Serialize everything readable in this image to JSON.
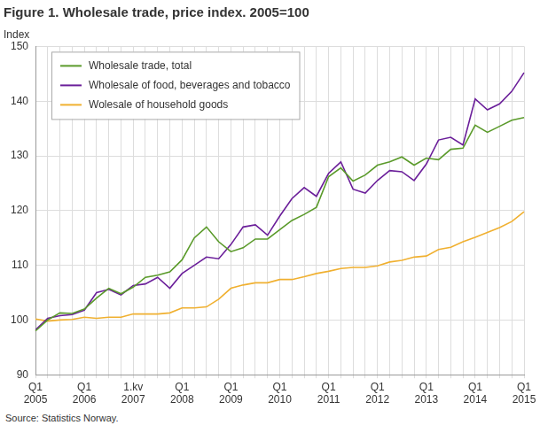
{
  "chart_data": {
    "type": "line",
    "title": "Figure 1. Wholesale trade, price index. 2005=100",
    "y_label": "Index",
    "source": "Source: Statistics Norway.",
    "categories": [
      "Q1\n2005",
      null,
      null,
      null,
      "Q1\n2006",
      null,
      null,
      null,
      "1.kv\n2007",
      null,
      null,
      null,
      "Q1\n2008",
      null,
      null,
      null,
      "Q1\n2009",
      null,
      null,
      null,
      "Q1\n2010",
      null,
      null,
      null,
      "Q1\n2011",
      null,
      null,
      null,
      "Q1\n2012",
      null,
      null,
      null,
      "Q1\n2013",
      null,
      null,
      null,
      "Q1\n2014",
      null,
      null,
      null,
      "Q1\n2015"
    ],
    "series": [
      {
        "name": "Wholesale trade, total",
        "color": "#5a9a2a",
        "marker": "none",
        "line_style": "solid",
        "values": [
          98,
          100,
          101.3,
          101.2,
          102,
          104,
          105.8,
          104.8,
          106,
          107.8,
          108.2,
          108.8,
          111,
          115,
          117,
          114.3,
          112.5,
          113.2,
          114.8,
          114.8,
          116.5,
          118.2,
          119.3,
          120.6,
          126.2,
          127.8,
          125.4,
          126.5,
          128.3,
          128.9,
          129.8,
          128.3,
          129.6,
          129.3,
          131.2,
          131.4,
          135.6,
          134.3,
          135.4,
          136.5,
          137
        ]
      },
      {
        "name": "Wholesale of food, beverages and tobacco",
        "color": "#6b1f9a",
        "marker": "none",
        "line_style": "solid",
        "values": [
          98.2,
          100.3,
          100.8,
          101,
          101.8,
          105,
          105.6,
          104.6,
          106.3,
          106.6,
          107.8,
          105.8,
          108.5,
          110,
          111.5,
          111.2,
          113.8,
          117,
          117.4,
          115.5,
          119,
          122.2,
          124.2,
          122.6,
          126.8,
          128.9,
          123.9,
          123.2,
          125.5,
          127.3,
          127.1,
          125.5,
          128.5,
          132.9,
          133.4,
          132,
          140.4,
          138.4,
          139.5,
          141.8,
          145.2
        ]
      },
      {
        "name": "Wolesale of household goods",
        "color": "#f0b030",
        "marker": "none",
        "line_style": "solid",
        "values": [
          100.2,
          99.8,
          100,
          100.1,
          100.5,
          100.3,
          100.5,
          100.5,
          101.1,
          101.1,
          101.1,
          101.3,
          102.2,
          102.2,
          102.4,
          103.8,
          105.8,
          106.4,
          106.8,
          106.8,
          107.4,
          107.4,
          107.9,
          108.5,
          108.9,
          109.4,
          109.6,
          109.6,
          109.9,
          110.6,
          110.9,
          111.5,
          111.7,
          112.9,
          113.3,
          114.3,
          115.1,
          116,
          116.9,
          118,
          119.8
        ]
      }
    ],
    "ylim": [
      90,
      150
    ],
    "yticks": [
      90,
      100,
      110,
      120,
      130,
      140,
      150
    ],
    "grid": true,
    "legend": "upper left"
  }
}
